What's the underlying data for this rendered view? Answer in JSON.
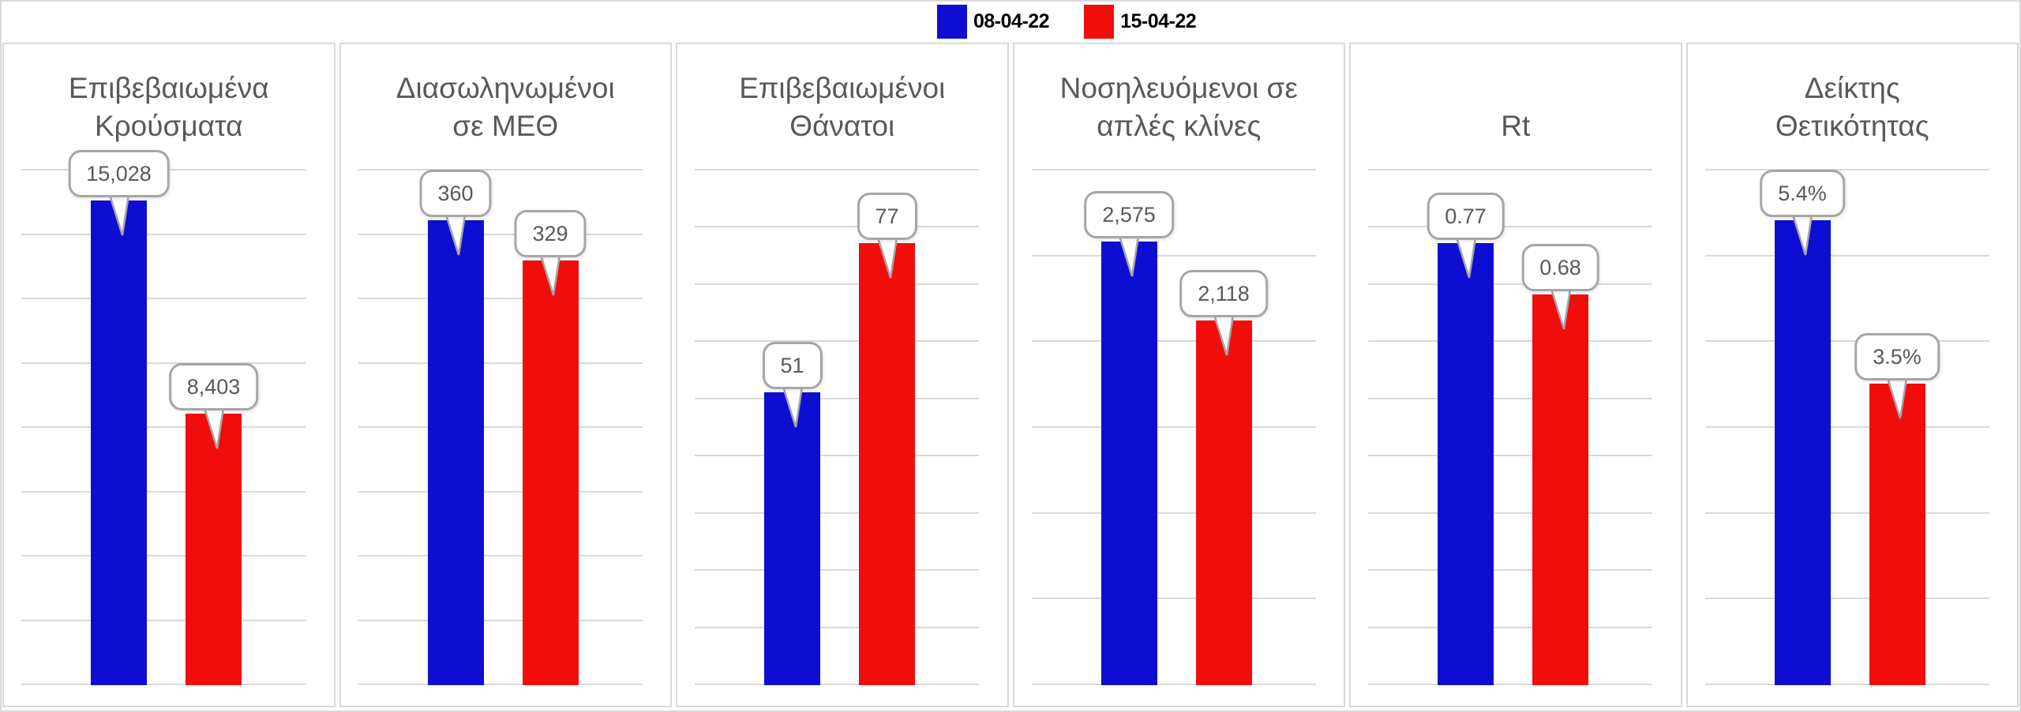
{
  "legend": {
    "entries": [
      {
        "label": "08-04-22",
        "color": "#0E0ED2"
      },
      {
        "label": "15-04-22",
        "color": "#F20D0D"
      }
    ],
    "position": "top-center"
  },
  "colors": {
    "series1": "#0E0ED2",
    "series2": "#F20D0D",
    "gridline": "#D9D9D9",
    "panel_border": "#D9D9D9",
    "callout_border": "#A6A6A6",
    "callout_text": "#595959",
    "title_text": "#595959",
    "legend_text": "#000000",
    "background": "#FFFFFF"
  },
  "chart_data": [
    {
      "type": "bar",
      "title": "Επιβεβαιωμένα Κρούσματα",
      "title_lines": [
        "Επιβεβαιωμένα",
        "Κρούσματα"
      ],
      "categories": [
        "08-04-22",
        "15-04-22"
      ],
      "values": [
        15028,
        8403
      ],
      "labels": [
        "15,028",
        "8,403"
      ],
      "xlabel": "",
      "ylabel": "",
      "ylim": [
        0,
        16000
      ],
      "grid_step": 2000,
      "grid": true,
      "legend_position": "shared-top"
    },
    {
      "type": "bar",
      "title": "Διασωληνωμένοι σε ΜΕΘ",
      "title_lines": [
        "Διασωληνωμένοι",
        "σε ΜΕΘ"
      ],
      "categories": [
        "08-04-22",
        "15-04-22"
      ],
      "values": [
        360,
        329
      ],
      "labels": [
        "360",
        "329"
      ],
      "xlabel": "",
      "ylabel": "",
      "ylim": [
        0,
        400
      ],
      "grid_step": 50,
      "grid": true,
      "legend_position": "shared-top"
    },
    {
      "type": "bar",
      "title": "Επιβεβαιωμένοι Θάνατοι",
      "title_lines": [
        "Επιβεβαιωμένοι",
        "Θάνατοι"
      ],
      "categories": [
        "08-04-22",
        "15-04-22"
      ],
      "values": [
        51,
        77
      ],
      "labels": [
        "51",
        "77"
      ],
      "xlabel": "",
      "ylabel": "",
      "ylim": [
        0,
        90
      ],
      "grid_step": 10,
      "grid": true,
      "legend_position": "shared-top"
    },
    {
      "type": "bar",
      "title": "Νοσηλευόμενοι σε απλές κλίνες",
      "title_lines": [
        "Νοσηλευόμενοι σε",
        "απλές κλίνες"
      ],
      "categories": [
        "08-04-22",
        "15-04-22"
      ],
      "values": [
        2575,
        2118
      ],
      "labels": [
        "2,575",
        "2,118"
      ],
      "xlabel": "",
      "ylabel": "",
      "ylim": [
        0,
        3000
      ],
      "grid_step": 500,
      "grid": true,
      "legend_position": "shared-top"
    },
    {
      "type": "bar",
      "title": "Rt",
      "title_lines": [
        "Rt"
      ],
      "categories": [
        "08-04-22",
        "15-04-22"
      ],
      "values": [
        0.77,
        0.68
      ],
      "labels": [
        "0.77",
        "0.68"
      ],
      "xlabel": "",
      "ylabel": "",
      "ylim": [
        0,
        0.9
      ],
      "grid_step": 0.1,
      "grid": true,
      "legend_position": "shared-top"
    },
    {
      "type": "bar",
      "title": "Δείκτης Θετικότητας",
      "title_lines": [
        "Δείκτης",
        "Θετικότητας"
      ],
      "categories": [
        "08-04-22",
        "15-04-22"
      ],
      "values": [
        5.4,
        3.5
      ],
      "labels": [
        "5.4%",
        "3.5%"
      ],
      "xlabel": "",
      "ylabel": "",
      "ylim": [
        0,
        6
      ],
      "grid_step": 1,
      "grid": true,
      "legend_position": "shared-top"
    }
  ]
}
